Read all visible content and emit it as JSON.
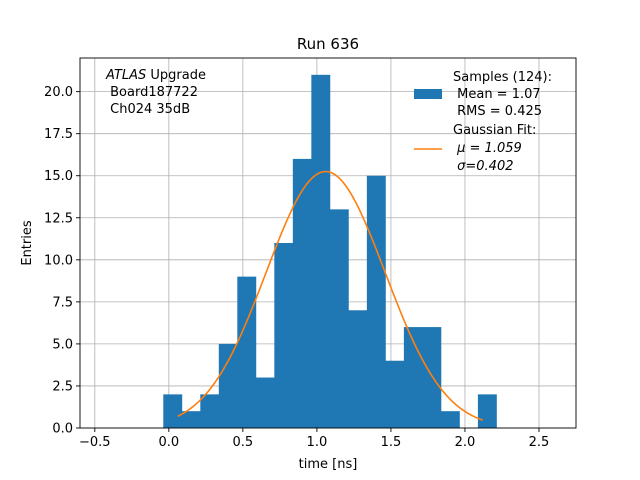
{
  "chart_data": {
    "type": "histogram",
    "title": "Run 636",
    "xlabel": "time [ns]",
    "ylabel": "Entries",
    "xlim": [
      -0.6,
      2.75
    ],
    "ylim": [
      0,
      22
    ],
    "xticks": [
      -0.5,
      0.0,
      0.5,
      1.0,
      1.5,
      2.0,
      2.5
    ],
    "xtick_labels": [
      "−0.5",
      "0.0",
      "0.5",
      "1.0",
      "1.5",
      "2.0",
      "2.5"
    ],
    "yticks": [
      0,
      2.5,
      5,
      7.5,
      10,
      12.5,
      15,
      17.5,
      20
    ],
    "ytick_labels": [
      "0.0",
      "2.5",
      "5.0",
      "7.5",
      "10.0",
      "12.5",
      "15.0",
      "17.5",
      "20.0"
    ],
    "grid": true,
    "bin_edges": [
      -0.0375,
      0.0875,
      0.2125,
      0.3375,
      0.4625,
      0.5875,
      0.7125,
      0.8375,
      0.9625,
      1.0875,
      1.2125,
      1.3375,
      1.4625,
      1.5875,
      1.7125,
      1.8375,
      1.9625,
      2.0875,
      2.2125
    ],
    "bin_counts": [
      2,
      1,
      2,
      5,
      9,
      3,
      11,
      16,
      21,
      13,
      7,
      15,
      4,
      6,
      6,
      1,
      0,
      2
    ],
    "bar_color": "#1f77b4",
    "fit": {
      "type": "gaussian",
      "mu": 1.059,
      "sigma": 0.402,
      "amplitude": 15.25,
      "x_range": [
        0.06,
        2.12
      ],
      "color": "#ff7f0e"
    },
    "legend": {
      "position": "top-right",
      "entries": [
        {
          "kind": "patch",
          "color": "#1f77b4",
          "lines": [
            "Samples (124):",
            " Mean = 1.07",
            " RMS = 0.425"
          ]
        },
        {
          "kind": "line",
          "color": "#ff7f0e",
          "lines": [
            "Gaussian Fit:",
            " μ = 1.059",
            " σ=0.402"
          ]
        }
      ]
    },
    "annotation": {
      "position": "top-left",
      "italic": "ATLAS",
      "lines": [
        " Upgrade",
        " Board187722",
        " Ch024 35dB"
      ]
    }
  }
}
